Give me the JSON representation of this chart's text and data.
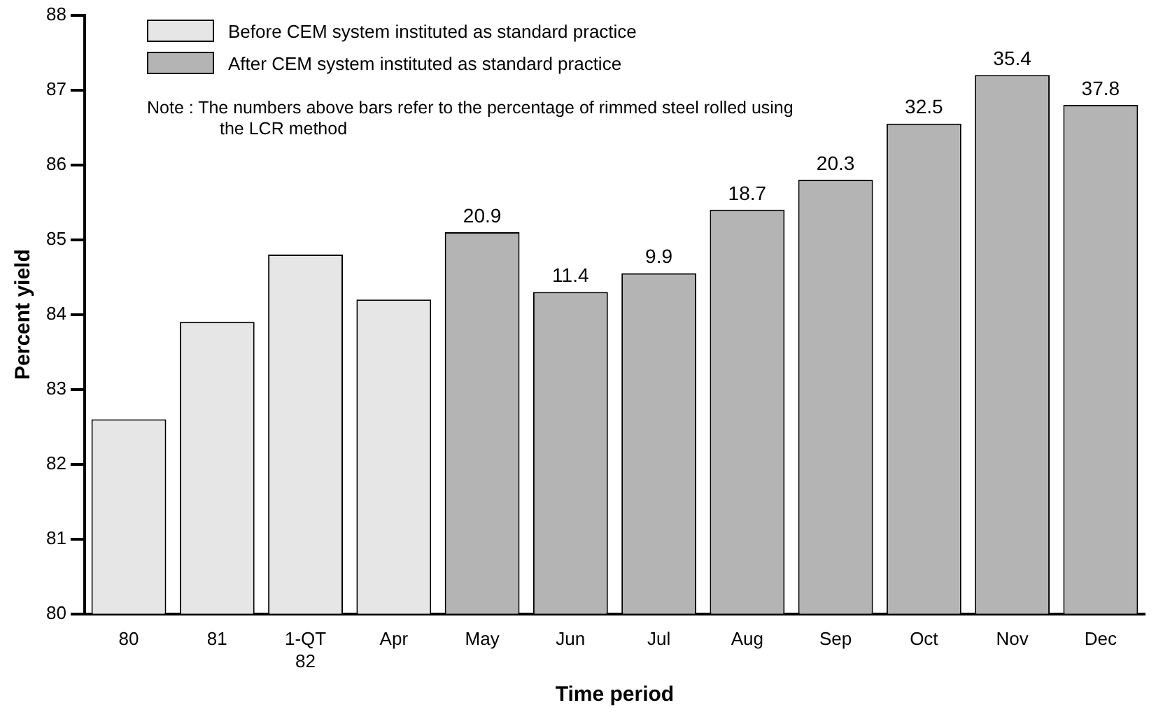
{
  "chart_data": {
    "type": "bar",
    "xlabel": "Time period",
    "ylabel": "Percent yield",
    "categories": [
      "80",
      "81",
      "1-QT\n82",
      "Apr",
      "May",
      "Jun",
      "Jul",
      "Aug",
      "Sep",
      "Oct",
      "Nov",
      "Dec"
    ],
    "series": [
      {
        "name": "Before CEM system instituted as standard practice",
        "color": "#e6e6e6",
        "values": [
          82.6,
          83.9,
          84.8,
          84.2,
          null,
          null,
          null,
          null,
          null,
          null,
          null,
          null
        ]
      },
      {
        "name": "After CEM system instituted as standard practice",
        "color": "#b4b4b4",
        "values": [
          null,
          null,
          null,
          null,
          85.1,
          84.3,
          84.55,
          85.4,
          85.8,
          86.55,
          87.2,
          86.8
        ]
      }
    ],
    "ylim": [
      80,
      88
    ],
    "yticks": [
      80,
      81,
      82,
      83,
      84,
      85,
      86,
      87,
      88
    ],
    "grid": false,
    "legend": "top left",
    "annotations": [
      "Note : The numbers above bars refer to the percentage of rimmed steel rolled using the LCR method",
      {
        "text": "20.9",
        "x": "May",
        "y": 85.1
      },
      {
        "text": "11.4",
        "x": "Jun",
        "y": 84.3
      },
      {
        "text": "9.9",
        "x": "Jul",
        "y": 84.55
      },
      {
        "text": "18.7",
        "x": "Aug",
        "y": 85.4
      },
      {
        "text": "20.3",
        "x": "Sep",
        "y": 85.8
      },
      {
        "text": "32.5",
        "x": "Oct",
        "y": 86.55
      },
      {
        "text": "35.4",
        "x": "Nov",
        "y": 87.2
      },
      {
        "text": "37.8",
        "x": "Dec",
        "y": 86.8
      }
    ]
  }
}
